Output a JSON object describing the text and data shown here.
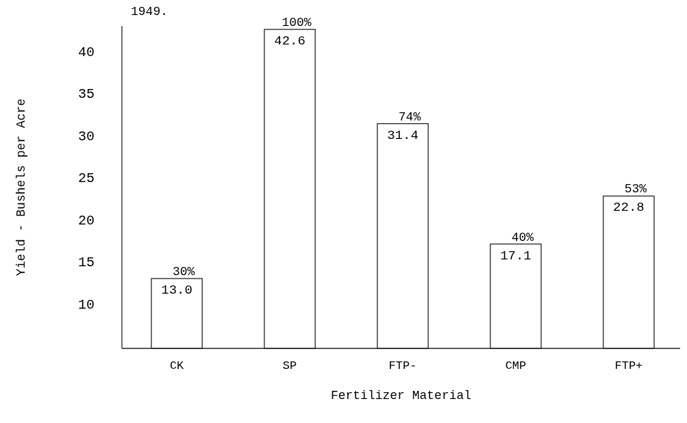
{
  "chart_data": {
    "type": "bar",
    "title": "1949.",
    "xlabel": "Fertilizer Material",
    "ylabel": "Yield - Bushels per Acre",
    "categories": [
      "CK",
      "SP",
      "FTP-",
      "CMP",
      "FTP+"
    ],
    "values": [
      13.0,
      42.6,
      31.4,
      17.1,
      22.8
    ],
    "color": "#ffffff",
    "value_labels": [
      "13.0",
      "42.6",
      "31.4",
      "17.1",
      "22.8"
    ],
    "annotations": [
      {
        "text": "30%",
        "x": "CK",
        "y": 13.0
      },
      {
        "text": "100%",
        "x": "SP",
        "y": 42.6
      },
      {
        "text": "74%",
        "x": "FTP-",
        "y": 31.4
      },
      {
        "text": "40%",
        "x": "CMP",
        "y": 17.1
      },
      {
        "text": "53%",
        "x": "FTP+",
        "y": 22.8
      }
    ],
    "ylim": [
      4.7,
      43
    ],
    "yticks": [
      10,
      15,
      20,
      25,
      30,
      35,
      40
    ],
    "grid": false
  }
}
